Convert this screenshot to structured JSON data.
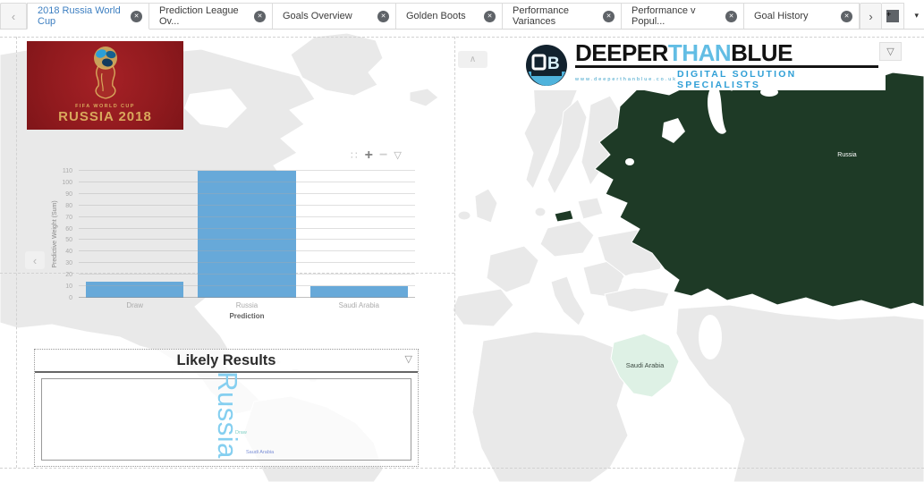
{
  "tab_bar": {
    "scroll_left_icon": "‹",
    "scroll_right_icon": "›",
    "add_tab_icon": "+",
    "overflow_caret_icon": "▾",
    "close_icon": "✕",
    "active_tab": "2018 Russia World Cup",
    "tabs": [
      {
        "label": "2018 Russia World Cup"
      },
      {
        "label": "Prediction League Ov..."
      },
      {
        "label": "Goals Overview"
      },
      {
        "label": "Golden Boots"
      },
      {
        "label": "Performance Variances"
      },
      {
        "label": "Performance v Popul..."
      },
      {
        "label": "Goal History"
      }
    ]
  },
  "worldcup_banner": {
    "line1": "FIFA WORLD CUP",
    "line2": "RUSSIA 2018"
  },
  "vendor_logo": {
    "mark_letters": "DB",
    "word_deeper": "DEEPER",
    "word_than": "THAN",
    "word_blue": "BLUE",
    "url": "www.deeperthanblue.co.uk",
    "tagline": "DIGITAL SOLUTION SPECIALISTS"
  },
  "chart_data": {
    "type": "bar",
    "title": "",
    "categories": [
      "Draw",
      "Russia",
      "Saudi Arabia"
    ],
    "values": [
      14,
      110,
      10
    ],
    "xlabel": "Prediction",
    "ylabel": "Predictive Weight (Sum)",
    "ylim": [
      0,
      110
    ],
    "yticks": [
      0,
      10,
      20,
      30,
      40,
      50,
      60,
      70,
      80,
      90,
      100,
      110
    ],
    "bar_color": "#67a9d9",
    "grid": true,
    "legend_position": "none"
  },
  "chart_toolbar": {
    "handle_icon": "∷",
    "zoom_in_icon": "+",
    "zoom_out_icon": "−",
    "funnel_icon": "▽"
  },
  "panel_controls": {
    "collapse_left_icon": "‹",
    "collapse_up_icon": "∧",
    "funnel_icon": "▽"
  },
  "likely_results": {
    "title": "Likely Results",
    "words": [
      {
        "text": "Russia",
        "size": "large",
        "color": "#85cff0"
      },
      {
        "text": "Draw",
        "size": "tiny",
        "color": "#7fcfc4"
      },
      {
        "text": "Saudi Arabia",
        "size": "tiny",
        "color": "#7b8fd6"
      }
    ]
  },
  "map": {
    "land_color": "#e9e9e9",
    "funnel_icon": "▽",
    "regions": [
      {
        "name": "Russia",
        "fill": "#1e3a26",
        "label_color": "#ffffff"
      },
      {
        "name": "Saudi Arabia",
        "fill": "#def1e5",
        "label_color": "#3c4a42"
      }
    ]
  }
}
